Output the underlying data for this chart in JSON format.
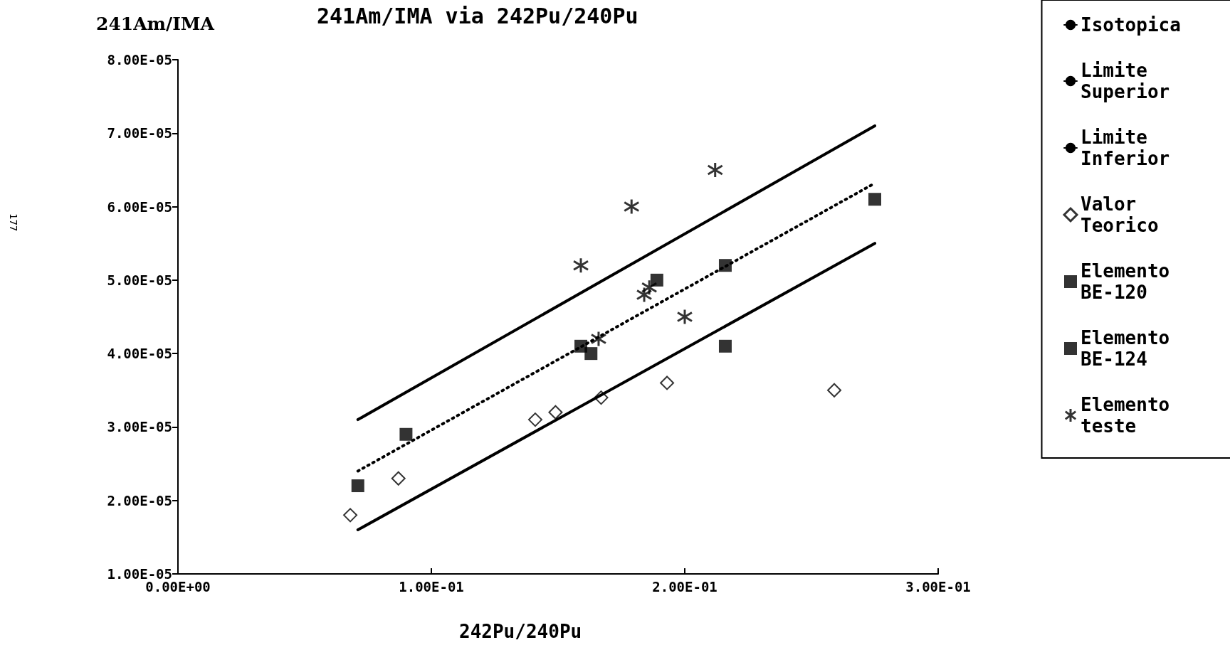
{
  "chart_data": {
    "type": "scatter",
    "title": "241Am/IMA via 242Pu/240Pu",
    "xlabel": "242Pu/240Pu",
    "ylabel": "241Am/IMA",
    "annotations": [
      "177"
    ],
    "xlim": [
      0,
      0.3
    ],
    "xticks": [
      {
        "value": 0,
        "label": "0.00E+00"
      },
      {
        "value": 0.1,
        "label": "1.00E-01"
      },
      {
        "value": 0.2,
        "label": "2.00E-01"
      },
      {
        "value": 0.3,
        "label": "3.00E-01"
      }
    ],
    "ylim": [
      1e-05,
      8e-05
    ],
    "yticks": [
      {
        "value": 1e-05,
        "label": "1.00E-05"
      },
      {
        "value": 2e-05,
        "label": "2.00E-05"
      },
      {
        "value": 3e-05,
        "label": "3.00E-05"
      },
      {
        "value": 4e-05,
        "label": "4.00E-05"
      },
      {
        "value": 5e-05,
        "label": "5.00E-05"
      },
      {
        "value": 6e-05,
        "label": "6.00E-05"
      },
      {
        "value": 7e-05,
        "label": "7.00E-05"
      },
      {
        "value": 8e-05,
        "label": "8.00E-05"
      }
    ],
    "grid": false,
    "legend": "right",
    "series": [
      {
        "name": "Isotopica",
        "type": "line",
        "color": "#000000",
        "marker": "none",
        "line_style": "dotted",
        "x": [
          0.071,
          0.274
        ],
        "values": [
          2.4e-05,
          6.3e-05
        ]
      },
      {
        "name": "Limite Superior",
        "type": "line",
        "color": "#000000",
        "marker": "none",
        "line_style": "solid",
        "x": [
          0.071,
          0.275
        ],
        "values": [
          3.1e-05,
          7.1e-05
        ]
      },
      {
        "name": "Limite Inferior",
        "type": "line",
        "color": "#000000",
        "marker": "none",
        "line_style": "solid",
        "x": [
          0.071,
          0.275
        ],
        "values": [
          1.6e-05,
          5.5e-05
        ]
      },
      {
        "name": "Valor Teorico",
        "color": "#000000",
        "marker": "diamond",
        "x": [
          0.068,
          0.087,
          0.141,
          0.149,
          0.167,
          0.193,
          0.259
        ],
        "values": [
          1.8e-05,
          2.3e-05,
          3.1e-05,
          3.2e-05,
          3.4e-05,
          3.6e-05,
          3.5e-05
        ]
      },
      {
        "name": "Elemento BE-120",
        "color": "#000000",
        "marker": "square",
        "x": [
          0.071,
          0.09,
          0.159,
          0.163,
          0.189,
          0.216,
          0.216
        ],
        "values": [
          2.2e-05,
          2.9e-05,
          4.1e-05,
          4e-05,
          5e-05,
          5.2e-05,
          4.1e-05
        ]
      },
      {
        "name": "Elemento BE-124",
        "color": "#000000",
        "marker": "square",
        "x": [
          0.275
        ],
        "values": [
          6.1e-05
        ]
      },
      {
        "name": "Elemento teste",
        "color": "#000000",
        "marker": "cross",
        "x": [
          0.159,
          0.179,
          0.212,
          0.166,
          0.184,
          0.186,
          0.2
        ],
        "values": [
          5.2e-05,
          6e-05,
          6.5e-05,
          4.2e-05,
          4.8e-05,
          4.9e-05,
          4.5e-05
        ]
      }
    ]
  }
}
